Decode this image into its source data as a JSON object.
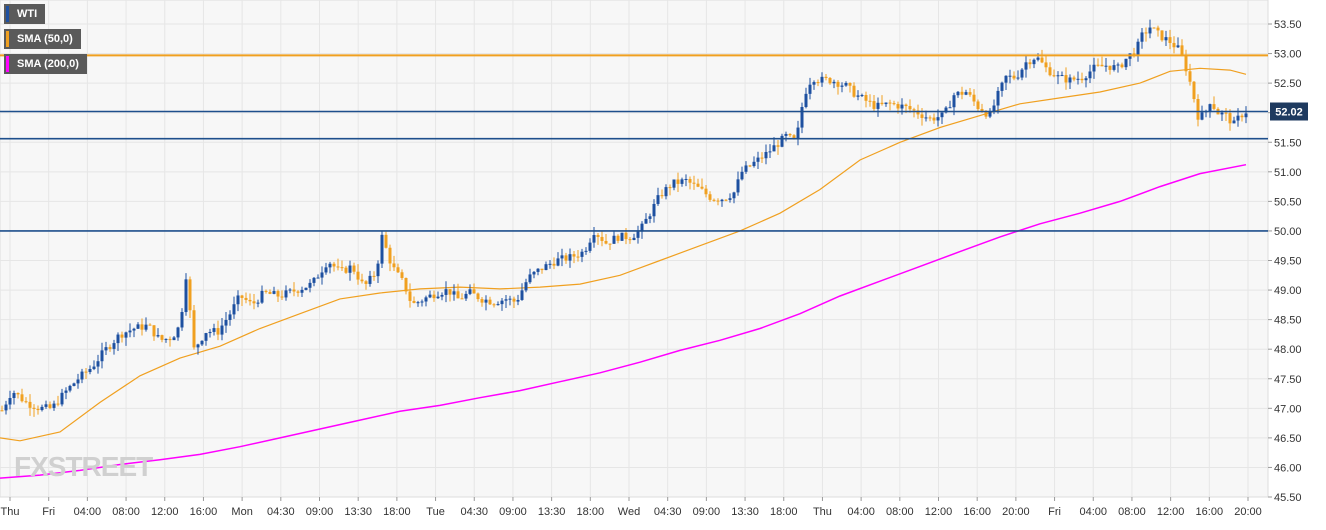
{
  "chart_data": {
    "type": "candlestick",
    "instrument": "WTI",
    "ylim": [
      45.5,
      53.75
    ],
    "y_ticks": [
      "45.50",
      "46.00",
      "46.50",
      "47.00",
      "47.50",
      "48.00",
      "48.50",
      "49.00",
      "49.50",
      "50.00",
      "50.50",
      "51.00",
      "51.50",
      "52.00",
      "52.50",
      "53.00",
      "53.50"
    ],
    "x_ticks": [
      "Thu",
      "Fri",
      "04:00",
      "08:00",
      "12:00",
      "16:00",
      "Mon",
      "04:30",
      "09:00",
      "13:30",
      "18:00",
      "Tue",
      "04:30",
      "09:00",
      "13:30",
      "18:00",
      "Wed",
      "04:30",
      "09:00",
      "13:30",
      "18:00",
      "Thu",
      "04:00",
      "08:00",
      "12:00",
      "16:00",
      "20:00",
      "Fri",
      "04:00",
      "08:00",
      "12:00",
      "16:00",
      "20:00"
    ],
    "last_price": "52.02",
    "horizontal_levels": [
      {
        "value": 52.97,
        "color": "#f0a020"
      },
      {
        "value": 52.02,
        "color": "#1e4f8c"
      },
      {
        "value": 51.56,
        "color": "#1e4f8c"
      },
      {
        "value": 50.0,
        "color": "#1e4f8c"
      }
    ],
    "legend": [
      {
        "label": "WTI",
        "color": "#1e50a0"
      },
      {
        "label": "SMA (50,0)",
        "color": "#f0a020"
      },
      {
        "label": "SMA (200,0)",
        "color": "#ff00ff"
      }
    ],
    "colors": {
      "up": "#1e50a0",
      "down": "#f0a020",
      "sma50": "#f0a020",
      "sma200": "#ff00ff",
      "grid": "#e6e6e6",
      "axis": "#333333"
    },
    "price_path": [
      [
        0,
        46.9
      ],
      [
        12,
        47.3
      ],
      [
        26,
        47.1
      ],
      [
        40,
        47.0
      ],
      [
        52,
        47.0
      ],
      [
        64,
        47.25
      ],
      [
        78,
        47.5
      ],
      [
        92,
        47.7
      ],
      [
        106,
        48.0
      ],
      [
        120,
        48.25
      ],
      [
        134,
        48.35
      ],
      [
        148,
        48.4
      ],
      [
        160,
        48.15
      ],
      [
        172,
        48.2
      ],
      [
        180,
        48.4
      ],
      [
        186,
        49.25
      ],
      [
        194,
        48.0
      ],
      [
        206,
        48.3
      ],
      [
        218,
        48.3
      ],
      [
        230,
        48.6
      ],
      [
        240,
        48.9
      ],
      [
        252,
        48.75
      ],
      [
        264,
        48.95
      ],
      [
        280,
        48.9
      ],
      [
        296,
        49.0
      ],
      [
        312,
        49.1
      ],
      [
        328,
        49.5
      ],
      [
        340,
        49.3
      ],
      [
        352,
        49.4
      ],
      [
        364,
        49.05
      ],
      [
        376,
        49.3
      ],
      [
        382,
        49.9
      ],
      [
        392,
        49.4
      ],
      [
        404,
        49.1
      ],
      [
        412,
        48.75
      ],
      [
        424,
        48.85
      ],
      [
        436,
        48.95
      ],
      [
        448,
        49.0
      ],
      [
        458,
        48.85
      ],
      [
        470,
        48.95
      ],
      [
        482,
        48.85
      ],
      [
        494,
        48.8
      ],
      [
        506,
        48.85
      ],
      [
        516,
        48.8
      ],
      [
        528,
        49.2
      ],
      [
        540,
        49.35
      ],
      [
        556,
        49.5
      ],
      [
        570,
        49.55
      ],
      [
        584,
        49.65
      ],
      [
        594,
        50.0
      ],
      [
        606,
        49.8
      ],
      [
        618,
        49.9
      ],
      [
        630,
        49.9
      ],
      [
        640,
        50.0
      ],
      [
        650,
        50.3
      ],
      [
        660,
        50.6
      ],
      [
        672,
        50.8
      ],
      [
        686,
        50.85
      ],
      [
        700,
        50.7
      ],
      [
        712,
        50.55
      ],
      [
        724,
        50.55
      ],
      [
        734,
        50.65
      ],
      [
        742,
        51.0
      ],
      [
        754,
        51.15
      ],
      [
        766,
        51.3
      ],
      [
        776,
        51.45
      ],
      [
        786,
        51.6
      ],
      [
        796,
        51.5
      ],
      [
        804,
        52.3
      ],
      [
        812,
        52.6
      ],
      [
        820,
        52.55
      ],
      [
        832,
        52.55
      ],
      [
        846,
        52.45
      ],
      [
        856,
        52.3
      ],
      [
        866,
        52.2
      ],
      [
        876,
        52.1
      ],
      [
        890,
        52.15
      ],
      [
        904,
        52.1
      ],
      [
        918,
        52.0
      ],
      [
        930,
        51.9
      ],
      [
        944,
        51.95
      ],
      [
        954,
        52.3
      ],
      [
        966,
        52.35
      ],
      [
        978,
        52.1
      ],
      [
        990,
        51.95
      ],
      [
        998,
        52.3
      ],
      [
        1006,
        52.6
      ],
      [
        1016,
        52.6
      ],
      [
        1026,
        52.85
      ],
      [
        1036,
        52.95
      ],
      [
        1046,
        52.75
      ],
      [
        1058,
        52.6
      ],
      [
        1070,
        52.55
      ],
      [
        1082,
        52.6
      ],
      [
        1094,
        52.75
      ],
      [
        1106,
        52.8
      ],
      [
        1118,
        52.75
      ],
      [
        1128,
        52.95
      ],
      [
        1136,
        53.05
      ],
      [
        1142,
        53.3
      ],
      [
        1150,
        53.45
      ],
      [
        1160,
        53.3
      ],
      [
        1170,
        53.2
      ],
      [
        1180,
        53.05
      ],
      [
        1186,
        52.75
      ],
      [
        1192,
        52.4
      ],
      [
        1198,
        51.95
      ],
      [
        1204,
        51.95
      ],
      [
        1210,
        52.2
      ],
      [
        1218,
        52.0
      ],
      [
        1226,
        51.95
      ],
      [
        1234,
        51.8
      ],
      [
        1240,
        51.95
      ],
      [
        1246,
        52.02
      ]
    ],
    "sma50_path": [
      [
        0,
        46.5
      ],
      [
        20,
        46.45
      ],
      [
        60,
        46.6
      ],
      [
        100,
        47.1
      ],
      [
        140,
        47.55
      ],
      [
        180,
        47.85
      ],
      [
        220,
        48.05
      ],
      [
        260,
        48.35
      ],
      [
        300,
        48.6
      ],
      [
        340,
        48.85
      ],
      [
        380,
        48.95
      ],
      [
        420,
        49.02
      ],
      [
        460,
        49.05
      ],
      [
        500,
        49.02
      ],
      [
        540,
        49.05
      ],
      [
        580,
        49.1
      ],
      [
        620,
        49.25
      ],
      [
        660,
        49.5
      ],
      [
        700,
        49.75
      ],
      [
        740,
        50.0
      ],
      [
        780,
        50.3
      ],
      [
        820,
        50.7
      ],
      [
        860,
        51.2
      ],
      [
        900,
        51.5
      ],
      [
        940,
        51.75
      ],
      [
        980,
        51.95
      ],
      [
        1020,
        52.15
      ],
      [
        1060,
        52.25
      ],
      [
        1100,
        52.35
      ],
      [
        1140,
        52.5
      ],
      [
        1170,
        52.7
      ],
      [
        1200,
        52.75
      ],
      [
        1230,
        52.72
      ],
      [
        1246,
        52.65
      ]
    ],
    "sma200_path": [
      [
        0,
        45.82
      ],
      [
        40,
        45.87
      ],
      [
        80,
        45.95
      ],
      [
        120,
        46.05
      ],
      [
        160,
        46.13
      ],
      [
        200,
        46.22
      ],
      [
        240,
        46.35
      ],
      [
        280,
        46.5
      ],
      [
        320,
        46.65
      ],
      [
        360,
        46.8
      ],
      [
        400,
        46.95
      ],
      [
        440,
        47.05
      ],
      [
        480,
        47.18
      ],
      [
        520,
        47.3
      ],
      [
        560,
        47.45
      ],
      [
        600,
        47.6
      ],
      [
        640,
        47.78
      ],
      [
        680,
        47.98
      ],
      [
        720,
        48.15
      ],
      [
        760,
        48.35
      ],
      [
        800,
        48.6
      ],
      [
        840,
        48.9
      ],
      [
        880,
        49.15
      ],
      [
        920,
        49.4
      ],
      [
        960,
        49.65
      ],
      [
        1000,
        49.9
      ],
      [
        1040,
        50.12
      ],
      [
        1080,
        50.3
      ],
      [
        1120,
        50.5
      ],
      [
        1160,
        50.75
      ],
      [
        1200,
        50.97
      ],
      [
        1246,
        51.12
      ]
    ]
  },
  "watermark": "FXSTREET"
}
